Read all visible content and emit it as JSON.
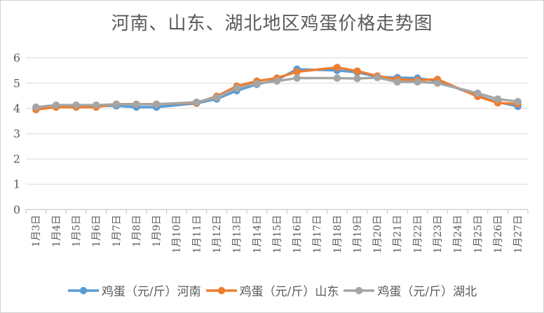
{
  "chart_data": {
    "type": "line",
    "title": "河南、山东、湖北地区鸡蛋价格走势图",
    "xlabel": "",
    "ylabel": "",
    "ylim": [
      0,
      6
    ],
    "yticks": [
      0,
      1,
      2,
      3,
      4,
      5,
      6
    ],
    "grid": true,
    "legend_position": "bottom",
    "categories": [
      "1月3日",
      "1月4日",
      "1月5日",
      "1月6日",
      "1月7日",
      "1月8日",
      "1月9日",
      "1月10日",
      "1月11日",
      "1月12日",
      "1月13日",
      "1月14日",
      "1月15日",
      "1月16日",
      "1月17日",
      "1月18日",
      "1月19日",
      "1月20日",
      "1月21日",
      "1月22日",
      "1月23日",
      "1月24日",
      "1月25日",
      "1月26日",
      "1月27日"
    ],
    "series": [
      {
        "name": "鸡蛋（元/斤）河南",
        "color": "#5B9BD5",
        "values": [
          4.0,
          4.1,
          4.1,
          4.1,
          4.1,
          4.05,
          4.05,
          null,
          4.2,
          4.37,
          4.7,
          4.95,
          5.12,
          5.55,
          null,
          5.5,
          5.43,
          5.25,
          5.22,
          5.2,
          5.08,
          null,
          4.5,
          4.25,
          4.08
        ]
      },
      {
        "name": "鸡蛋（元/斤）山东",
        "color": "#ED7D31",
        "values": [
          3.95,
          4.05,
          4.05,
          4.05,
          4.17,
          4.17,
          4.17,
          null,
          4.22,
          4.48,
          4.88,
          5.08,
          5.2,
          5.45,
          null,
          5.62,
          5.48,
          5.28,
          5.15,
          5.12,
          5.15,
          null,
          4.47,
          4.22,
          4.18
        ]
      },
      {
        "name": "鸡蛋（元/斤）湖北",
        "color": "#A5A5A5",
        "values": [
          4.05,
          4.13,
          4.13,
          4.13,
          4.16,
          4.16,
          4.16,
          null,
          4.25,
          4.43,
          4.8,
          4.98,
          5.08,
          5.2,
          null,
          5.2,
          5.18,
          5.22,
          5.05,
          5.05,
          5.0,
          null,
          4.6,
          4.37,
          4.27
        ]
      }
    ]
  },
  "colors": {
    "text": "#595959",
    "gridline": "#D9D9D9",
    "axis": "#BFBFBF",
    "background": "#FFFFFF"
  }
}
